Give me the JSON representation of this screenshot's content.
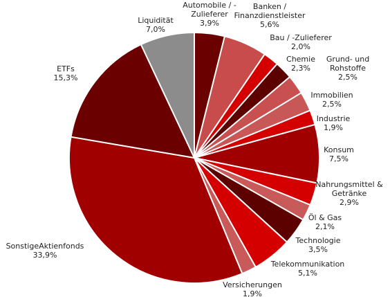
{
  "chart_data": {
    "type": "pie",
    "categories": [
      [
        "Automobile / -",
        "Zulieferer"
      ],
      [
        "Banken /",
        "Finanzdienstleister"
      ],
      [
        "Bau / -Zulieferer"
      ],
      [
        "Chemie"
      ],
      [
        "Grund- und",
        "Rohstoffe"
      ],
      [
        "Immobilien"
      ],
      [
        "Industrie"
      ],
      [
        "Konsum"
      ],
      [
        "Nahrungsmittel &",
        "Getränke"
      ],
      [
        "Öl & Gas"
      ],
      [
        "Technologie"
      ],
      [
        "Telekommunikation"
      ],
      [
        "Versicherungen"
      ],
      [
        "SonstigeAktienfonds"
      ],
      [
        "ETFs"
      ],
      [
        "Liquidität"
      ]
    ],
    "values": [
      3.9,
      5.6,
      2.0,
      2.3,
      2.5,
      2.5,
      1.9,
      7.5,
      2.9,
      2.1,
      3.5,
      5.1,
      1.9,
      33.9,
      15.3,
      7.0
    ],
    "value_labels": [
      "3,9%",
      "5,6%",
      "2,0%",
      "2,3%",
      "2,5%",
      "2,5%",
      "1,9%",
      "7,5%",
      "2,9%",
      "2,1%",
      "3,5%",
      "5,1%",
      "1,9%",
      "33,9%",
      "15,3%",
      "7,0%"
    ],
    "colors": [
      "#6b0000",
      "#c84c4c",
      "#d40000",
      "#5c0000",
      "#c85050",
      "#c85858",
      "#d40000",
      "#a00000",
      "#d40000",
      "#c85a5a",
      "#5c0000",
      "#d40000",
      "#c85a5a",
      "#a00000",
      "#6b0000",
      "#8c8c8c"
    ]
  }
}
